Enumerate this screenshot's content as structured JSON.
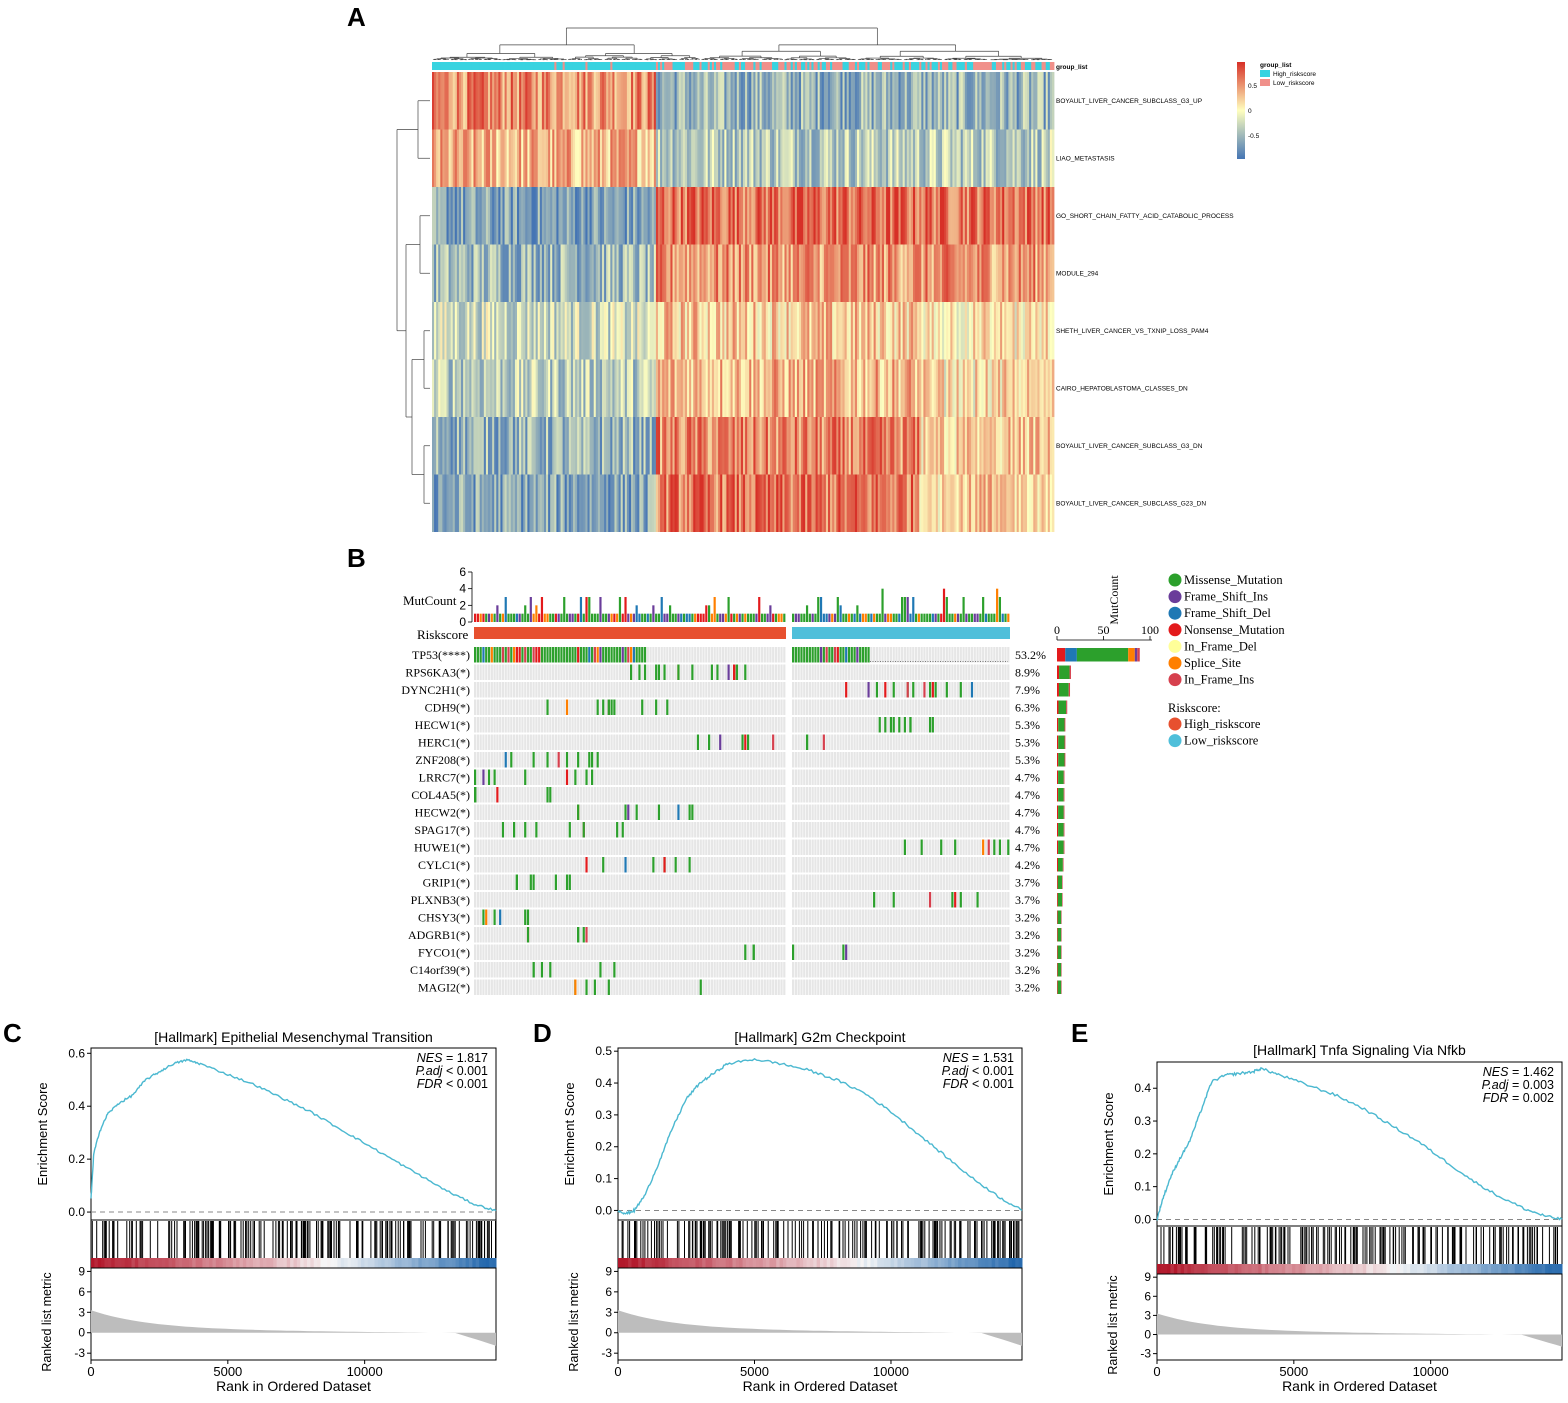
{
  "panels": {
    "A": "A",
    "B": "B",
    "C": "C",
    "D": "D",
    "E": "E"
  },
  "chart_data": [
    {
      "type": "heatmap",
      "panel": "A",
      "annotation_label": "group_list",
      "rows": [
        "BOYAULT_LIVER_CANCER_SUBCLASS_G3_UP",
        "LIAO_METASTASIS",
        "GO_SHORT_CHAIN_FATTY_ACID_CATABOLIC_PROCESS",
        "MODULE_294",
        "SHETH_LIVER_CANCER_VS_TXNIP_LOSS_PAM4",
        "CAIRO_HEPATOBLASTOMA_CLASSES_DN",
        "BOYAULT_LIVER_CANCER_SUBCLASS_G3_DN",
        "BOYAULT_LIVER_CANCER_SUBCLASS_G23_DN"
      ],
      "row_trends": [
        0.55,
        0.35,
        -0.7,
        -0.5,
        -0.25,
        -0.35,
        -0.55,
        -0.65
      ],
      "groups": [
        "High_riskscore",
        "Low_riskscore"
      ],
      "group_split_fraction": 0.36,
      "color_scale": {
        "ticks": [
          "0.5",
          "0",
          "-0.5"
        ],
        "high": "#d73027",
        "mid": "#ffffbf",
        "low": "#4575b4"
      },
      "legend": {
        "title": "group_list",
        "items": [
          {
            "label": "High_riskscore",
            "color": "#38d3e0"
          },
          {
            "label": "Low_riskscore",
            "color": "#f0908a"
          }
        ]
      }
    },
    {
      "type": "oncoplot",
      "panel": "B",
      "mutcount_label": "MutCount",
      "mutcount_ticks": [
        "6",
        "4",
        "2",
        "0"
      ],
      "riskscore_label": "Riskscore",
      "side_axis_label": "MutCount",
      "side_axis_ticks": [
        "0",
        "50",
        "100"
      ],
      "genes": [
        {
          "name": "TP53(****)",
          "pct": "53.2%",
          "bar": 89
        },
        {
          "name": "RPS6KA3(*)",
          "pct": "8.9%",
          "bar": 15
        },
        {
          "name": "DYNC2H1(*)",
          "pct": "7.9%",
          "bar": 14
        },
        {
          "name": "CDH9(*)",
          "pct": "6.3%",
          "bar": 11
        },
        {
          "name": "HECW1(*)",
          "pct": "5.3%",
          "bar": 9
        },
        {
          "name": "HERC1(*)",
          "pct": "5.3%",
          "bar": 9
        },
        {
          "name": "ZNF208(*)",
          "pct": "5.3%",
          "bar": 9
        },
        {
          "name": "LRRC7(*)",
          "pct": "4.7%",
          "bar": 8
        },
        {
          "name": "COL4A5(*)",
          "pct": "4.7%",
          "bar": 8
        },
        {
          "name": "HECW2(*)",
          "pct": "4.7%",
          "bar": 8
        },
        {
          "name": "SPAG17(*)",
          "pct": "4.7%",
          "bar": 8
        },
        {
          "name": "HUWE1(*)",
          "pct": "4.7%",
          "bar": 8
        },
        {
          "name": "CYLC1(*)",
          "pct": "4.2%",
          "bar": 7
        },
        {
          "name": "GRIP1(*)",
          "pct": "3.7%",
          "bar": 6
        },
        {
          "name": "PLXNB3(*)",
          "pct": "3.7%",
          "bar": 6
        },
        {
          "name": "CHSY3(*)",
          "pct": "3.2%",
          "bar": 5
        },
        {
          "name": "ADGRB1(*)",
          "pct": "3.2%",
          "bar": 5
        },
        {
          "name": "FYCO1(*)",
          "pct": "3.2%",
          "bar": 5
        },
        {
          "name": "C14orf39(*)",
          "pct": "3.2%",
          "bar": 5
        },
        {
          "name": "MAGI2(*)",
          "pct": "3.2%",
          "bar": 5
        }
      ],
      "mutation_legend": [
        {
          "label": "Missense_Mutation",
          "color": "#2ca02c"
        },
        {
          "label": "Frame_Shift_Ins",
          "color": "#6a3d9a"
        },
        {
          "label": "Frame_Shift_Del",
          "color": "#1f78b4"
        },
        {
          "label": "Nonsense_Mutation",
          "color": "#e31a1c"
        },
        {
          "label": "In_Frame_Del",
          "color": "#ffff99"
        },
        {
          "label": "Splice_Site",
          "color": "#ff7f00"
        },
        {
          "label": "In_Frame_Ins",
          "color": "#d6404e"
        }
      ],
      "risk_legend_title": "Riskscore:",
      "risk_legend": [
        {
          "label": "High_riskscore",
          "color": "#e7502f"
        },
        {
          "label": "Low_riskscore",
          "color": "#4fbfda"
        }
      ],
      "high_fraction": 0.59
    },
    {
      "type": "line",
      "panel": "C",
      "title": "[Hallmark] Epithelial Mesenchymal Transition",
      "stats": [
        {
          "name": "NES",
          "value": "= 1.817"
        },
        {
          "name": "P.adj",
          "value": "< 0.001"
        },
        {
          "name": "FDR",
          "value": "< 0.001"
        }
      ],
      "ylabel": "Enrichment Score",
      "yticks": [
        "0.0",
        "0.2",
        "0.4",
        "0.6"
      ],
      "ylim": [
        -0.03,
        0.62
      ],
      "metric_ylabel": "Ranked list metric",
      "metric_yticks": [
        "-3",
        "0",
        "3",
        "6",
        "9"
      ],
      "metric_ylim": [
        -4,
        9.5
      ],
      "xlabel": "Rank in Ordered Dataset",
      "xticks": [
        "0",
        "5000",
        "10000"
      ],
      "xlim": [
        0,
        14800
      ],
      "es_curve": [
        [
          0,
          0.05
        ],
        [
          100,
          0.22
        ],
        [
          300,
          0.3
        ],
        [
          600,
          0.37
        ],
        [
          1000,
          0.41
        ],
        [
          1500,
          0.44
        ],
        [
          2000,
          0.5
        ],
        [
          2500,
          0.53
        ],
        [
          3000,
          0.56
        ],
        [
          3500,
          0.575
        ],
        [
          4000,
          0.56
        ],
        [
          5000,
          0.52
        ],
        [
          6000,
          0.48
        ],
        [
          7000,
          0.43
        ],
        [
          8000,
          0.38
        ],
        [
          9000,
          0.32
        ],
        [
          10000,
          0.26
        ],
        [
          11000,
          0.2
        ],
        [
          12000,
          0.14
        ],
        [
          13000,
          0.08
        ],
        [
          14000,
          0.03
        ],
        [
          14800,
          0.005
        ]
      ],
      "hit_density": 0.55
    },
    {
      "type": "line",
      "panel": "D",
      "title": "[Hallmark] G2m Checkpoint",
      "stats": [
        {
          "name": "NES",
          "value": "= 1.531"
        },
        {
          "name": "P.adj",
          "value": "< 0.001"
        },
        {
          "name": "FDR",
          "value": "< 0.001"
        }
      ],
      "ylabel": "Enrichment Score",
      "yticks": [
        "0.0",
        "0.1",
        "0.2",
        "0.3",
        "0.4",
        "0.5"
      ],
      "ylim": [
        -0.03,
        0.51
      ],
      "metric_ylabel": "Ranked list metric",
      "metric_yticks": [
        "-3",
        "0",
        "3",
        "6",
        "9"
      ],
      "metric_ylim": [
        -4,
        9.5
      ],
      "xlabel": "Rank in Ordered Dataset",
      "xticks": [
        "0",
        "5000",
        "10000"
      ],
      "xlim": [
        0,
        14800
      ],
      "es_curve": [
        [
          0,
          0.0
        ],
        [
          300,
          -0.01
        ],
        [
          600,
          0.0
        ],
        [
          1000,
          0.05
        ],
        [
          1500,
          0.15
        ],
        [
          2000,
          0.26
        ],
        [
          2500,
          0.35
        ],
        [
          3000,
          0.4
        ],
        [
          3500,
          0.43
        ],
        [
          4000,
          0.46
        ],
        [
          5000,
          0.475
        ],
        [
          6000,
          0.46
        ],
        [
          7000,
          0.44
        ],
        [
          8000,
          0.41
        ],
        [
          9000,
          0.37
        ],
        [
          10000,
          0.31
        ],
        [
          11000,
          0.24
        ],
        [
          12000,
          0.17
        ],
        [
          13000,
          0.1
        ],
        [
          14000,
          0.04
        ],
        [
          14800,
          0.0
        ]
      ],
      "hit_density": 0.7
    },
    {
      "type": "line",
      "panel": "E",
      "title": "[Hallmark] Tnfa Signaling Via Nfkb",
      "stats": [
        {
          "name": "NES",
          "value": "= 1.462"
        },
        {
          "name": "P.adj",
          "value": "= 0.003"
        },
        {
          "name": "FDR",
          "value": "= 0.002"
        }
      ],
      "ylabel": "Enrichment Score",
      "yticks": [
        "0.0",
        "0.1",
        "0.2",
        "0.3",
        "0.4"
      ],
      "ylim": [
        -0.02,
        0.48
      ],
      "metric_ylabel": "Ranked list metric",
      "metric_yticks": [
        "-3",
        "0",
        "3",
        "6",
        "9"
      ],
      "metric_ylim": [
        -4,
        9.5
      ],
      "xlabel": "Rank in Ordered Dataset",
      "xticks": [
        "0",
        "5000",
        "10000"
      ],
      "xlim": [
        0,
        14800
      ],
      "es_curve": [
        [
          0,
          0.0
        ],
        [
          200,
          0.06
        ],
        [
          500,
          0.13
        ],
        [
          800,
          0.18
        ],
        [
          1200,
          0.24
        ],
        [
          1600,
          0.33
        ],
        [
          2000,
          0.42
        ],
        [
          2500,
          0.44
        ],
        [
          3000,
          0.445
        ],
        [
          3500,
          0.45
        ],
        [
          3800,
          0.46
        ],
        [
          4500,
          0.44
        ],
        [
          5500,
          0.41
        ],
        [
          6500,
          0.38
        ],
        [
          7500,
          0.34
        ],
        [
          8500,
          0.29
        ],
        [
          9500,
          0.24
        ],
        [
          10500,
          0.18
        ],
        [
          11500,
          0.12
        ],
        [
          12500,
          0.07
        ],
        [
          13500,
          0.03
        ],
        [
          14200,
          0.01
        ],
        [
          14800,
          0.0
        ]
      ],
      "hit_density": 0.55
    }
  ]
}
